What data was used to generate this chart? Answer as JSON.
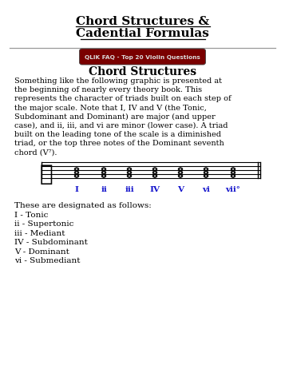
{
  "title_line1": "Chord Structures &",
  "title_line2": "Cadential Formulas",
  "badge_text": "QLIK FAQ - Top 20 Violin Questions",
  "section_title": "Chord Structures",
  "body_lines": [
    "Something like the following graphic is presented at",
    "the beginning of nearly every theory book. This",
    "represents the character of triads built on each step of",
    "the major scale. Note that I, IV and V (the Tonic,",
    "Subdominant and Dominant) are major (and upper",
    "case), and ii, iii, and vi are minor (lower case). A triad",
    "built on the leading tone of the scale is a diminished",
    "triad, or the top three notes of the Dominant seventh",
    "chord (V⁷)."
  ],
  "chord_labels": [
    "I",
    "ii",
    "iii",
    "IV",
    "V",
    "vi",
    "vii°"
  ],
  "chord_label_color": "#1515cc",
  "footer_header": "These are designated as follows:",
  "footer_lines": [
    "I - Tonic",
    "ii - Supertonic",
    "iii - Mediant",
    "IV - Subdominant",
    "V - Dominant",
    "vi - Submediant"
  ],
  "bg_color": "#ffffff",
  "text_color": "#000000",
  "title_color": "#000000",
  "badge_bg": "#7a0000",
  "badge_text_color": "#dddddd",
  "separator_color": "#999999",
  "staff_color": "#000000"
}
